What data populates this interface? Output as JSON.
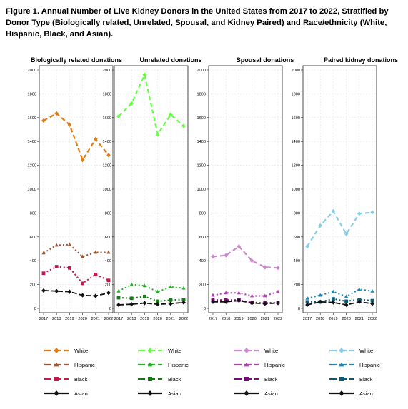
{
  "figure": {
    "title": "Figure 1. Annual Number of Live Kidney Donors in the United States from 2017 to 2022, Stratified by Donor Type (Biologically related, Unrelated, Spousal, and Kidney Paired) and Race/ethnicity (White, Hispanic, Black, and Asian)."
  },
  "chart_data": [
    {
      "type": "line",
      "title": "Biologically related donations",
      "x": [
        2017,
        2018,
        2019,
        2020,
        2021,
        2022
      ],
      "ylim": [
        0,
        2000
      ],
      "yticks": [
        0,
        200,
        400,
        600,
        800,
        1000,
        1200,
        1400,
        1600,
        1800,
        2000
      ],
      "grid": true,
      "series": [
        {
          "name": "White",
          "color": "#e07b12",
          "marker": "diamond",
          "values": [
            1575,
            1635,
            1540,
            1245,
            1420,
            1285
          ]
        },
        {
          "name": "Hispanic",
          "color": "#a0522d",
          "marker": "triangle",
          "values": [
            465,
            530,
            535,
            435,
            470,
            470
          ]
        },
        {
          "name": "Black",
          "color": "#c8174a",
          "marker": "square",
          "values": [
            295,
            350,
            340,
            210,
            285,
            235
          ]
        },
        {
          "name": "Asian",
          "color": "#111111",
          "marker": "diamond",
          "values": [
            150,
            145,
            140,
            110,
            105,
            130
          ]
        }
      ]
    },
    {
      "type": "line",
      "title": "Unrelated donations",
      "x": [
        2017,
        2018,
        2019,
        2020,
        2021,
        2022
      ],
      "ylim": [
        0,
        2000
      ],
      "yticks": [
        0,
        200,
        400,
        600,
        800,
        1000,
        1200,
        1400,
        1600,
        1800,
        2000
      ],
      "grid": true,
      "series": [
        {
          "name": "White",
          "color": "#66ff44",
          "marker": "diamond",
          "values": [
            1610,
            1720,
            1960,
            1460,
            1625,
            1530
          ]
        },
        {
          "name": "Hispanic",
          "color": "#22b422",
          "marker": "triangle",
          "values": [
            145,
            200,
            190,
            140,
            180,
            170
          ]
        },
        {
          "name": "Black",
          "color": "#147814",
          "marker": "square",
          "values": [
            90,
            85,
            100,
            60,
            70,
            75
          ]
        },
        {
          "name": "Asian",
          "color": "#111111",
          "marker": "diamond",
          "values": [
            30,
            35,
            45,
            35,
            40,
            50
          ]
        }
      ]
    },
    {
      "type": "line",
      "title": "Spousal donations",
      "x": [
        2017,
        2018,
        2019,
        2020,
        2021,
        2022
      ],
      "ylim": [
        0,
        2000
      ],
      "yticks": [
        0,
        200,
        400,
        600,
        800,
        1000,
        1200,
        1400,
        1600,
        1800,
        2000
      ],
      "grid": true,
      "series": [
        {
          "name": "White",
          "color": "#cc88cc",
          "marker": "diamond",
          "values": [
            435,
            445,
            520,
            400,
            345,
            340
          ]
        },
        {
          "name": "Hispanic",
          "color": "#b040b0",
          "marker": "triangle",
          "values": [
            110,
            130,
            130,
            105,
            105,
            140
          ]
        },
        {
          "name": "Black",
          "color": "#7a0a7a",
          "marker": "square",
          "values": [
            70,
            70,
            70,
            50,
            45,
            50
          ]
        },
        {
          "name": "Asian",
          "color": "#111111",
          "marker": "diamond",
          "values": [
            55,
            55,
            65,
            45,
            40,
            45
          ]
        }
      ]
    },
    {
      "type": "line",
      "title": "Paired kidney donations",
      "x": [
        2017,
        2018,
        2019,
        2020,
        2021,
        2022
      ],
      "ylim": [
        0,
        2000
      ],
      "yticks": [
        0,
        200,
        400,
        600,
        800,
        1000,
        1200,
        1400,
        1600,
        1800,
        2000
      ],
      "grid": true,
      "series": [
        {
          "name": "White",
          "color": "#87cde6",
          "marker": "diamond",
          "values": [
            520,
            695,
            815,
            625,
            795,
            805
          ]
        },
        {
          "name": "Hispanic",
          "color": "#1a86b8",
          "marker": "triangle",
          "values": [
            85,
            110,
            140,
            100,
            160,
            145
          ]
        },
        {
          "name": "Black",
          "color": "#0c5a73",
          "marker": "square",
          "values": [
            55,
            55,
            80,
            60,
            75,
            65
          ]
        },
        {
          "name": "Asian",
          "color": "#111111",
          "marker": "diamond",
          "values": [
            30,
            55,
            50,
            30,
            55,
            40
          ]
        }
      ]
    }
  ]
}
